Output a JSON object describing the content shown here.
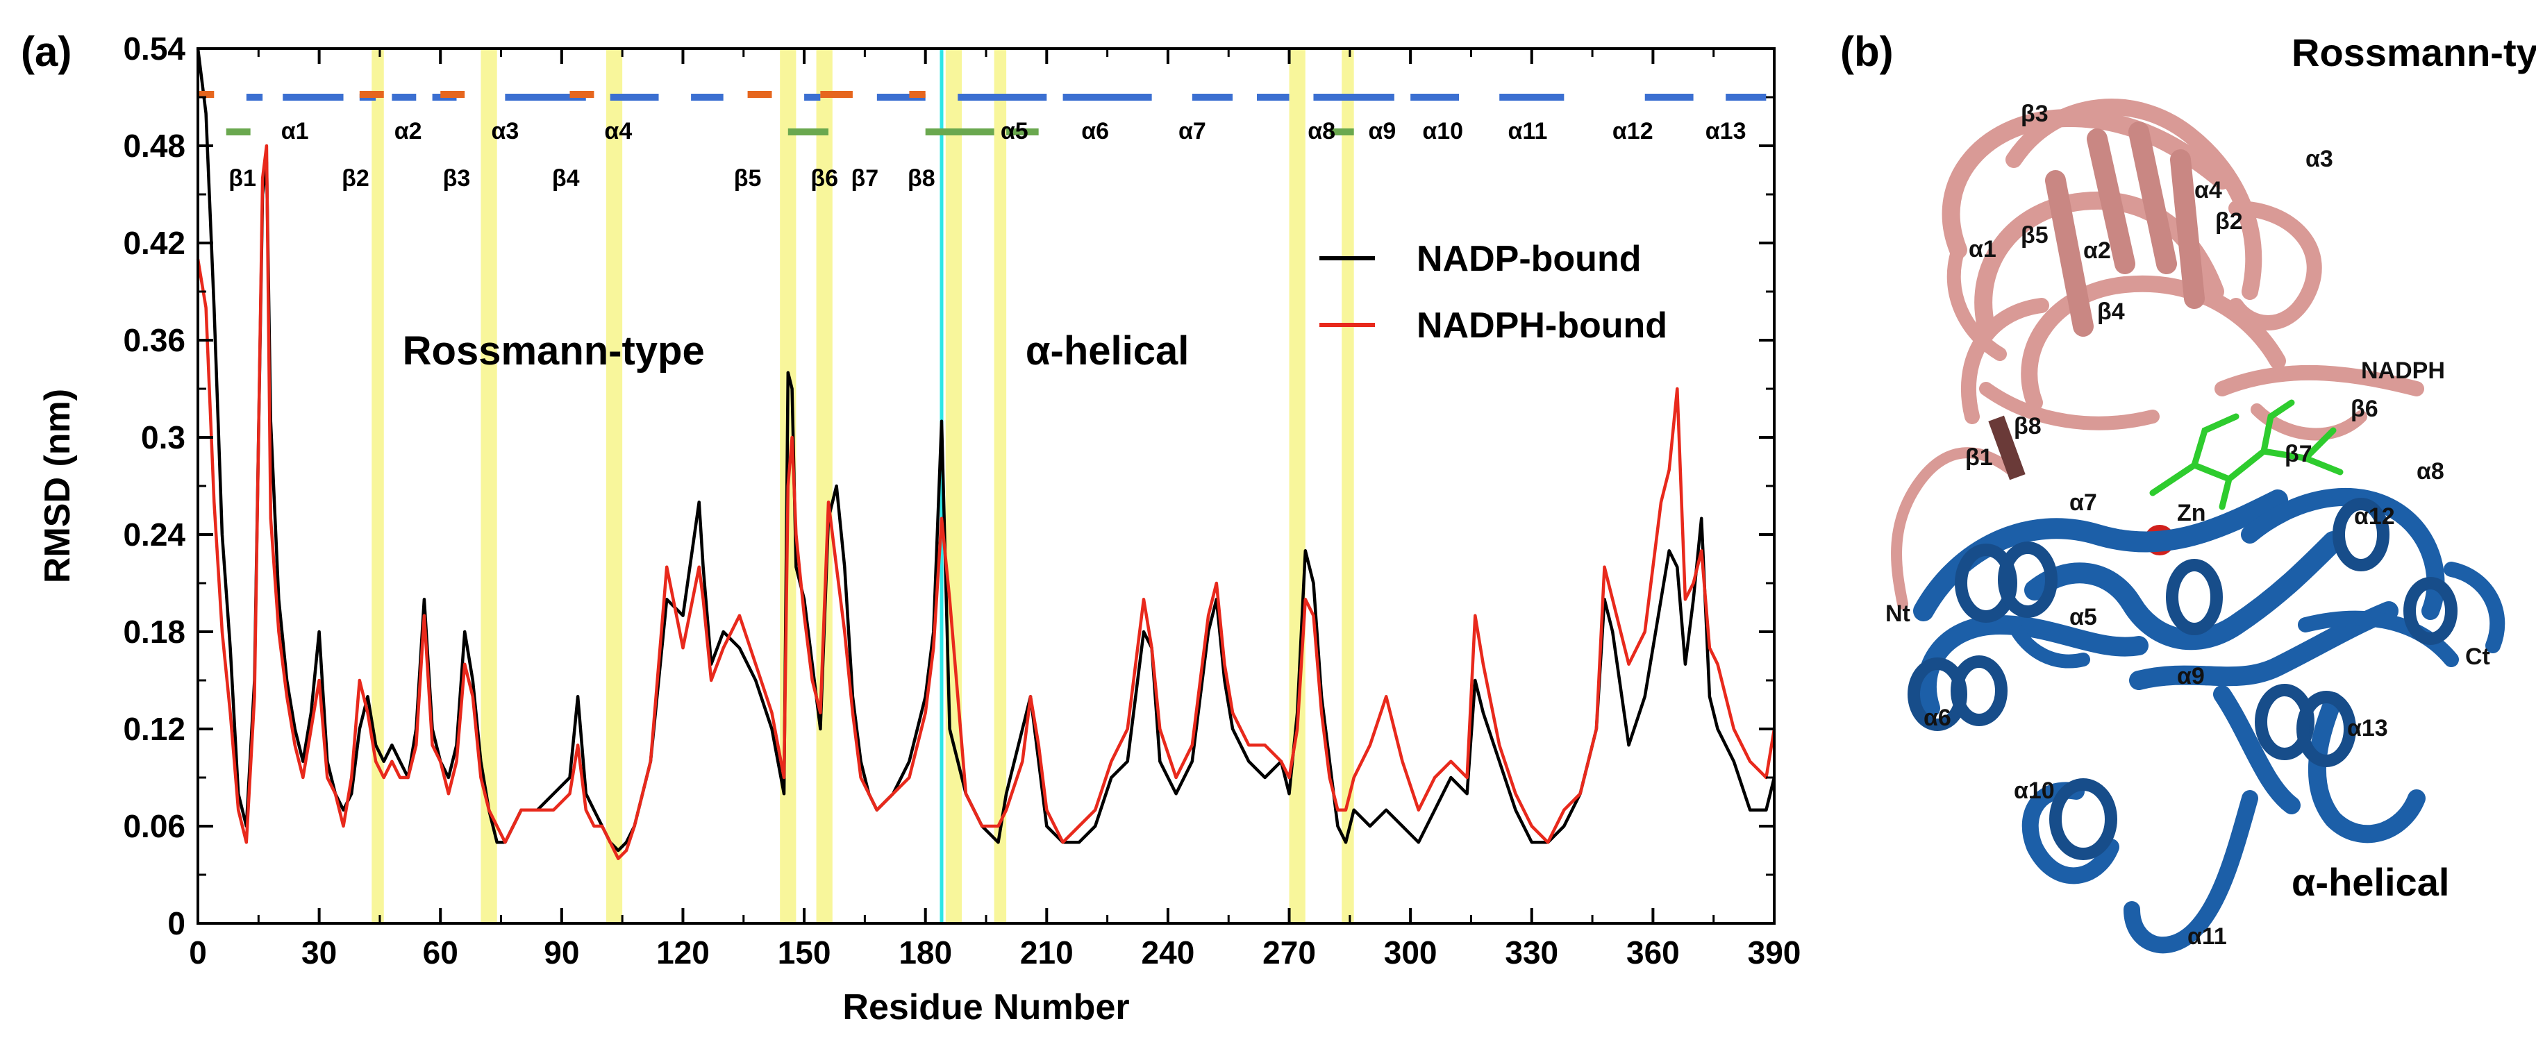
{
  "panel_a_label": "(a)",
  "panel_b_label": "(b)",
  "chart_data": {
    "type": "line",
    "xlabel": "Residue Number",
    "ylabel": "RMSD (nm)",
    "xlim": [
      0,
      390
    ],
    "ylim": [
      0,
      0.54
    ],
    "xticks": [
      0,
      30,
      60,
      90,
      120,
      150,
      180,
      210,
      240,
      270,
      300,
      330,
      360,
      390
    ],
    "yticks": [
      0,
      0.06,
      0.12,
      0.18,
      0.24,
      0.3,
      0.36,
      0.42,
      0.48,
      0.54
    ],
    "ytick_labels": [
      "0",
      "0.06",
      "0.12",
      "0.18",
      "0.24",
      "0.3",
      "0.36",
      "0.42",
      "0.48",
      "0.54"
    ],
    "legend_position": "upper-right",
    "series": [
      {
        "name": "NADP-bound",
        "color": "#000000",
        "x": [
          0,
          2,
          4,
          6,
          8,
          10,
          12,
          14,
          16,
          17,
          18,
          20,
          22,
          24,
          26,
          28,
          30,
          32,
          34,
          36,
          38,
          40,
          42,
          44,
          46,
          48,
          50,
          52,
          54,
          56,
          58,
          60,
          62,
          64,
          66,
          68,
          70,
          72,
          74,
          76,
          78,
          80,
          84,
          88,
          92,
          94,
          96,
          98,
          100,
          102,
          104,
          106,
          108,
          112,
          116,
          120,
          124,
          125,
          127,
          130,
          134,
          138,
          142,
          145,
          146,
          147,
          148,
          150,
          152,
          154,
          156,
          158,
          160,
          162,
          164,
          166,
          168,
          172,
          176,
          180,
          182,
          184,
          186,
          188,
          190,
          194,
          198,
          200,
          204,
          206,
          208,
          210,
          214,
          218,
          222,
          226,
          230,
          234,
          236,
          238,
          242,
          246,
          250,
          252,
          254,
          256,
          260,
          264,
          268,
          270,
          272,
          274,
          276,
          278,
          280,
          282,
          284,
          286,
          290,
          294,
          298,
          302,
          306,
          310,
          314,
          316,
          318,
          322,
          326,
          330,
          334,
          338,
          342,
          346,
          348,
          350,
          354,
          358,
          362,
          364,
          366,
          368,
          370,
          372,
          374,
          376,
          380,
          384,
          388,
          390
        ],
        "y": [
          0.54,
          0.5,
          0.38,
          0.24,
          0.17,
          0.08,
          0.06,
          0.15,
          0.45,
          0.47,
          0.31,
          0.2,
          0.15,
          0.12,
          0.1,
          0.13,
          0.18,
          0.1,
          0.08,
          0.07,
          0.08,
          0.12,
          0.14,
          0.11,
          0.1,
          0.11,
          0.1,
          0.09,
          0.12,
          0.2,
          0.12,
          0.1,
          0.09,
          0.11,
          0.18,
          0.15,
          0.1,
          0.07,
          0.05,
          0.05,
          0.06,
          0.07,
          0.07,
          0.08,
          0.09,
          0.14,
          0.08,
          0.07,
          0.06,
          0.05,
          0.045,
          0.05,
          0.06,
          0.1,
          0.2,
          0.19,
          0.26,
          0.22,
          0.16,
          0.18,
          0.17,
          0.15,
          0.12,
          0.08,
          0.34,
          0.33,
          0.22,
          0.2,
          0.16,
          0.12,
          0.25,
          0.27,
          0.22,
          0.14,
          0.1,
          0.08,
          0.07,
          0.08,
          0.1,
          0.14,
          0.18,
          0.31,
          0.12,
          0.1,
          0.08,
          0.06,
          0.05,
          0.08,
          0.12,
          0.14,
          0.1,
          0.06,
          0.05,
          0.05,
          0.06,
          0.09,
          0.1,
          0.18,
          0.17,
          0.1,
          0.08,
          0.1,
          0.18,
          0.2,
          0.15,
          0.12,
          0.1,
          0.09,
          0.1,
          0.08,
          0.13,
          0.23,
          0.21,
          0.14,
          0.1,
          0.06,
          0.05,
          0.07,
          0.06,
          0.07,
          0.06,
          0.05,
          0.07,
          0.09,
          0.08,
          0.15,
          0.13,
          0.1,
          0.07,
          0.05,
          0.05,
          0.06,
          0.08,
          0.12,
          0.2,
          0.18,
          0.11,
          0.14,
          0.2,
          0.23,
          0.22,
          0.16,
          0.2,
          0.25,
          0.14,
          0.12,
          0.1,
          0.07,
          0.07,
          0.09
        ]
      },
      {
        "name": "NADPH-bound",
        "color": "#e8291c",
        "x": [
          0,
          2,
          4,
          6,
          8,
          10,
          12,
          14,
          16,
          17,
          18,
          20,
          22,
          24,
          26,
          28,
          30,
          32,
          34,
          36,
          38,
          40,
          42,
          44,
          46,
          48,
          50,
          52,
          54,
          56,
          58,
          60,
          62,
          64,
          66,
          68,
          70,
          72,
          74,
          76,
          78,
          80,
          84,
          88,
          92,
          94,
          96,
          98,
          100,
          102,
          104,
          106,
          108,
          112,
          116,
          120,
          124,
          125,
          127,
          130,
          134,
          138,
          142,
          145,
          146,
          147,
          148,
          150,
          152,
          154,
          156,
          158,
          160,
          162,
          164,
          166,
          168,
          172,
          176,
          180,
          182,
          184,
          186,
          188,
          190,
          194,
          198,
          200,
          204,
          206,
          208,
          210,
          214,
          218,
          222,
          226,
          230,
          234,
          236,
          238,
          242,
          246,
          250,
          252,
          254,
          256,
          260,
          264,
          268,
          270,
          272,
          274,
          276,
          278,
          280,
          282,
          284,
          286,
          290,
          294,
          298,
          302,
          306,
          310,
          314,
          316,
          318,
          322,
          326,
          330,
          334,
          338,
          342,
          346,
          348,
          350,
          354,
          358,
          362,
          364,
          366,
          368,
          370,
          372,
          374,
          376,
          380,
          384,
          388,
          390
        ],
        "y": [
          0.41,
          0.38,
          0.26,
          0.18,
          0.13,
          0.07,
          0.05,
          0.14,
          0.46,
          0.48,
          0.25,
          0.18,
          0.14,
          0.11,
          0.09,
          0.12,
          0.15,
          0.09,
          0.08,
          0.06,
          0.09,
          0.15,
          0.13,
          0.1,
          0.09,
          0.1,
          0.09,
          0.09,
          0.11,
          0.19,
          0.11,
          0.1,
          0.08,
          0.1,
          0.16,
          0.14,
          0.09,
          0.07,
          0.06,
          0.05,
          0.06,
          0.07,
          0.07,
          0.07,
          0.08,
          0.11,
          0.07,
          0.06,
          0.06,
          0.05,
          0.04,
          0.045,
          0.06,
          0.1,
          0.22,
          0.17,
          0.22,
          0.2,
          0.15,
          0.17,
          0.19,
          0.16,
          0.13,
          0.09,
          0.27,
          0.3,
          0.24,
          0.19,
          0.15,
          0.13,
          0.26,
          0.22,
          0.18,
          0.13,
          0.09,
          0.08,
          0.07,
          0.08,
          0.09,
          0.13,
          0.17,
          0.25,
          0.2,
          0.14,
          0.08,
          0.06,
          0.06,
          0.07,
          0.1,
          0.14,
          0.11,
          0.07,
          0.05,
          0.06,
          0.07,
          0.1,
          0.12,
          0.2,
          0.17,
          0.12,
          0.09,
          0.11,
          0.19,
          0.21,
          0.16,
          0.13,
          0.11,
          0.11,
          0.1,
          0.09,
          0.12,
          0.2,
          0.19,
          0.13,
          0.09,
          0.07,
          0.07,
          0.09,
          0.11,
          0.14,
          0.1,
          0.07,
          0.09,
          0.1,
          0.09,
          0.19,
          0.16,
          0.11,
          0.08,
          0.06,
          0.05,
          0.07,
          0.08,
          0.12,
          0.22,
          0.2,
          0.16,
          0.18,
          0.26,
          0.28,
          0.33,
          0.2,
          0.21,
          0.23,
          0.17,
          0.16,
          0.12,
          0.1,
          0.09,
          0.12
        ]
      }
    ],
    "highlight_bands": [
      [
        43,
        46
      ],
      [
        70,
        74
      ],
      [
        101,
        105
      ],
      [
        144,
        148
      ],
      [
        153,
        157
      ],
      [
        185,
        189
      ],
      [
        197,
        200
      ],
      [
        270,
        274
      ],
      [
        283,
        286
      ]
    ],
    "domain_divider_x": 184,
    "domain_labels": [
      {
        "text": "Rossmann-type",
        "x": 88,
        "y": 0.345
      },
      {
        "text": "α-helical",
        "x": 225,
        "y": 0.345
      }
    ],
    "secondary_structure": {
      "helix_color": "#3b6fd1",
      "strand_color": "#e6661e",
      "green_color": "#6aa84f",
      "helix_segments": [
        [
          12,
          16
        ],
        [
          21,
          36
        ],
        [
          40,
          44
        ],
        [
          48,
          54
        ],
        [
          58,
          64
        ],
        [
          76,
          96
        ],
        [
          102,
          114
        ],
        [
          122,
          130
        ],
        [
          150,
          154
        ],
        [
          168,
          180
        ],
        [
          188,
          210
        ],
        [
          214,
          236
        ],
        [
          246,
          256
        ],
        [
          262,
          270
        ],
        [
          276,
          296
        ],
        [
          300,
          312
        ],
        [
          322,
          338
        ],
        [
          358,
          370
        ],
        [
          378,
          388
        ]
      ],
      "strand_segments": [
        [
          0,
          4
        ],
        [
          40,
          46
        ],
        [
          60,
          66
        ],
        [
          92,
          98
        ],
        [
          136,
          142
        ],
        [
          154,
          162
        ],
        [
          176,
          180
        ]
      ],
      "green_segments": [
        [
          7,
          13
        ],
        [
          146,
          156
        ],
        [
          180,
          197
        ],
        [
          200,
          208
        ],
        [
          280,
          286
        ]
      ],
      "labels": [
        {
          "text": "β1",
          "x": 11,
          "row": "beta"
        },
        {
          "text": "α1",
          "x": 24,
          "row": "alpha"
        },
        {
          "text": "β2",
          "x": 39,
          "row": "beta"
        },
        {
          "text": "α2",
          "x": 52,
          "row": "alpha"
        },
        {
          "text": "β3",
          "x": 64,
          "row": "beta"
        },
        {
          "text": "α3",
          "x": 76,
          "row": "alpha"
        },
        {
          "text": "β4",
          "x": 91,
          "row": "beta"
        },
        {
          "text": "α4",
          "x": 104,
          "row": "alpha"
        },
        {
          "text": "β5",
          "x": 136,
          "row": "beta"
        },
        {
          "text": "β6",
          "x": 155,
          "row": "beta"
        },
        {
          "text": "β7",
          "x": 165,
          "row": "beta"
        },
        {
          "text": "β8",
          "x": 179,
          "row": "beta"
        },
        {
          "text": "α5",
          "x": 202,
          "row": "alpha"
        },
        {
          "text": "α6",
          "x": 222,
          "row": "alpha"
        },
        {
          "text": "α7",
          "x": 246,
          "row": "alpha"
        },
        {
          "text": "α8",
          "x": 278,
          "row": "alpha"
        },
        {
          "text": "α9",
          "x": 293,
          "row": "alpha"
        },
        {
          "text": "α10",
          "x": 308,
          "row": "alpha"
        },
        {
          "text": "α11",
          "x": 329,
          "row": "alpha"
        },
        {
          "text": "α12",
          "x": 355,
          "row": "alpha"
        },
        {
          "text": "α13",
          "x": 378,
          "row": "alpha"
        }
      ]
    }
  },
  "structure": {
    "title_top": "Rossmann-type",
    "title_bottom": "α-helical",
    "rossmann_color": "#d99a96",
    "helical_color": "#1c5fa8",
    "ligand_color": "#2ecc2e",
    "zinc_color": "#d0201c",
    "labels": [
      "β3",
      "α3",
      "α4",
      "β2",
      "β5",
      "α2",
      "α1",
      "β4",
      "NADPH",
      "β6",
      "β8",
      "β1",
      "β7",
      "α8",
      "α7",
      "Zn",
      "α12",
      "Nt",
      "α5",
      "Ct",
      "α9",
      "α6",
      "α13",
      "α10",
      "α11"
    ]
  }
}
